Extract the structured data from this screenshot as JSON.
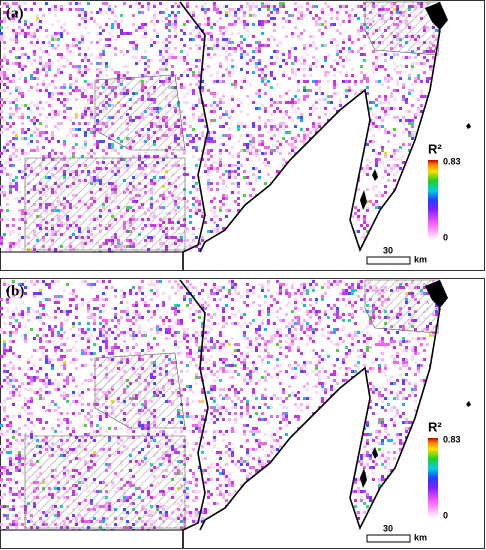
{
  "panels": [
    {
      "label": "(a)",
      "legend": {
        "title": "R²",
        "max": 0.83,
        "min": 0
      },
      "scale": {
        "length": 30,
        "unit": "km"
      }
    },
    {
      "label": "(b)",
      "legend": {
        "title": "R²",
        "max": 0.83,
        "min": 0
      },
      "scale": {
        "length": 30,
        "unit": "km"
      }
    }
  ]
}
